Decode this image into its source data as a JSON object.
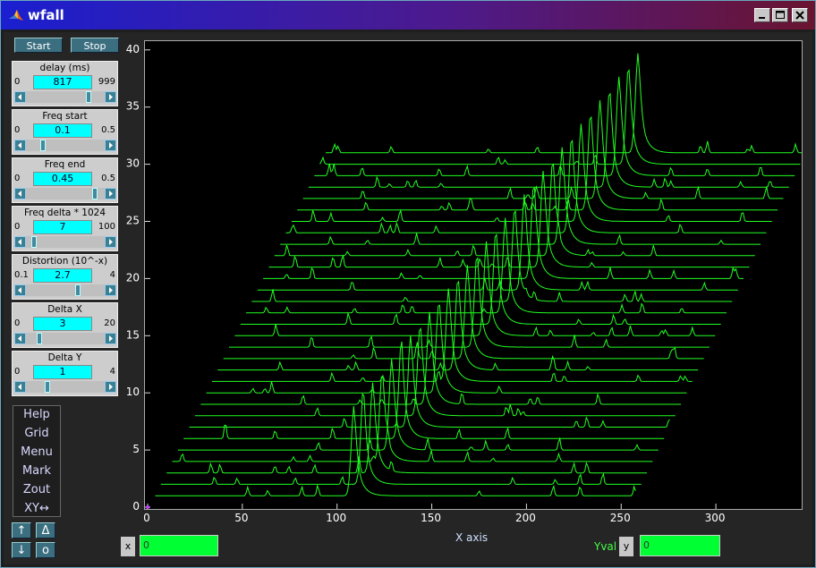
{
  "window": {
    "title": "wfall",
    "icon": "matlab-icon"
  },
  "controls": {
    "start_label": "Start",
    "stop_label": "Stop"
  },
  "panels": [
    {
      "title": "delay (ms)",
      "min": "0",
      "max": "999",
      "value": "817",
      "slider_fraction": 0.818
    },
    {
      "title": "Freq start",
      "min": "0",
      "max": "0.5",
      "value": "0.1",
      "slider_fraction": 0.2
    },
    {
      "title": "Freq end",
      "min": "0",
      "max": "0.5",
      "value": "0.45",
      "slider_fraction": 0.9
    },
    {
      "title": "Freq delta * 1024",
      "min": "0",
      "max": "100",
      "value": "7",
      "slider_fraction": 0.07
    },
    {
      "title": "Distortion (10^-x)",
      "min": "0.1",
      "max": "4",
      "value": "2.7",
      "slider_fraction": 0.667
    },
    {
      "title": "Delta X",
      "min": "0",
      "max": "20",
      "value": "3",
      "slider_fraction": 0.15
    },
    {
      "title": "Delta Y",
      "min": "0",
      "max": "4",
      "value": "1",
      "slider_fraction": 0.25
    }
  ],
  "menu": [
    "Help",
    "Grid",
    "Menu",
    "Mark",
    "Zout",
    "XY↔"
  ],
  "small_buttons": {
    "up": "↑",
    "delta": "Δ",
    "down": "↓",
    "origin": "o"
  },
  "status": {
    "xaxis_label": "X axis",
    "x_label": "x",
    "x_value": "0",
    "yval_label": "Yval",
    "y_label": "y",
    "y_value": "0"
  },
  "colors": {
    "trace": "#22ff22",
    "plot_bg": "#000000",
    "field_bg": "#00ff33",
    "edit_bg": "#00ffff"
  },
  "chart_data": {
    "type": "line",
    "title": "",
    "xlabel": "X axis",
    "ylabel": "",
    "xlim": [
      0,
      345
    ],
    "ylim": [
      0,
      41
    ],
    "x_ticks": [
      0,
      50,
      100,
      150,
      200,
      250,
      300
    ],
    "y_ticks": [
      0,
      5,
      10,
      15,
      20,
      25,
      30,
      35,
      40
    ],
    "grid": false,
    "waterfall": {
      "num_traces": 31,
      "delta_x": 3,
      "delta_y": 1,
      "first_trace_x_start": 4,
      "first_trace_x_end": 258,
      "trace_baselines_y": [
        1,
        2,
        3,
        4,
        5,
        6,
        7,
        8,
        9,
        10,
        11,
        12,
        13,
        14,
        15,
        16,
        17,
        18,
        19,
        20,
        21,
        22,
        23,
        24,
        25,
        26,
        27,
        28,
        29,
        30,
        31
      ],
      "peak_x_first_trace": 109,
      "peak_x_step": 5,
      "peak_height": 8.8
    }
  }
}
